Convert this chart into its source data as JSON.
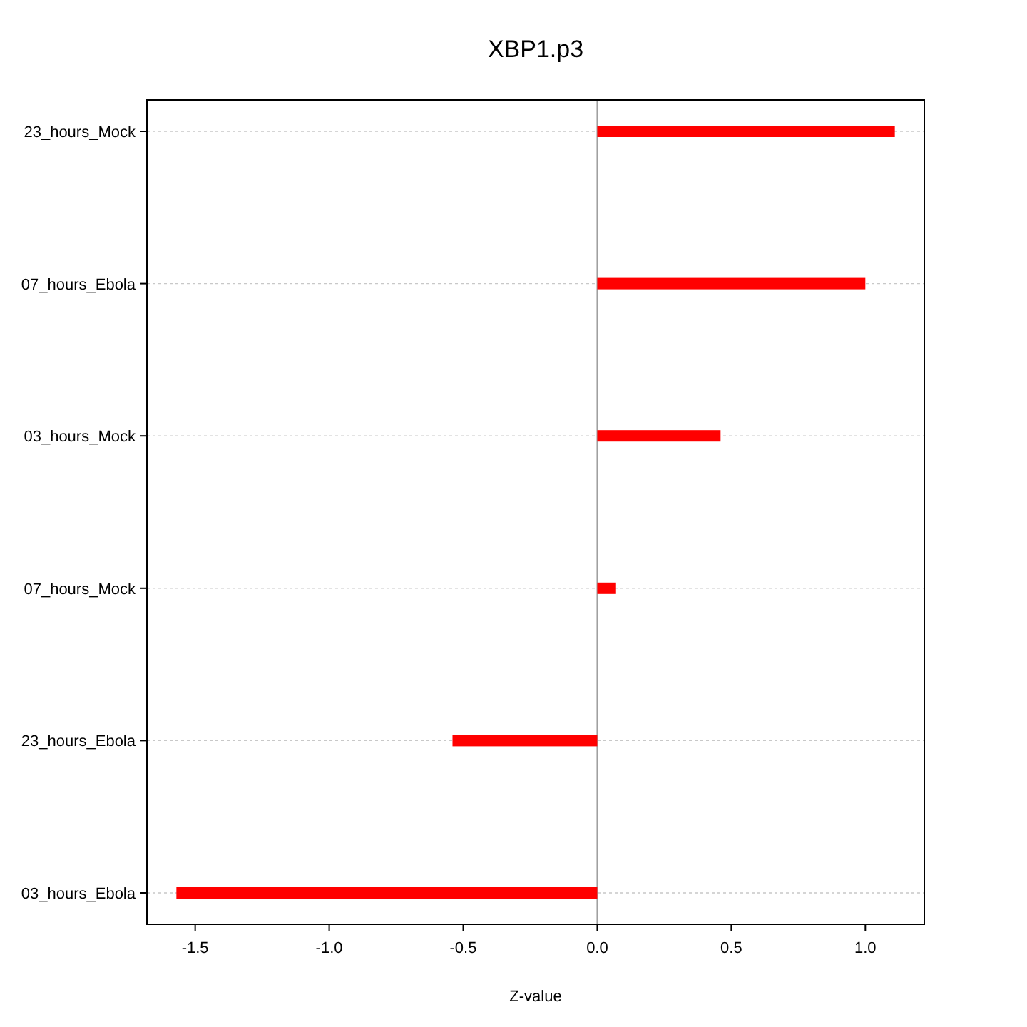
{
  "chart_data": {
    "type": "bar",
    "orientation": "horizontal",
    "title": "XBP1.p3",
    "xlabel": "Z-value",
    "categories": [
      "23_hours_Mock",
      "07_hours_Ebola",
      "03_hours_Mock",
      "07_hours_Mock",
      "23_hours_Ebola",
      "03_hours_Ebola"
    ],
    "values": [
      1.11,
      1.0,
      0.46,
      0.07,
      -0.54,
      -1.57
    ],
    "color": "#ff0000",
    "xlim": [
      -1.68,
      1.22
    ],
    "xticks": [
      -1.5,
      {
        "value": -1,
        "label": "-1.0"
      },
      -0.5,
      {
        "value": 0,
        "label": "0.0"
      },
      0.5,
      {
        "value": 1,
        "label": "1.0"
      }
    ],
    "grid": "y",
    "ref_lines": [
      {
        "axis": "x",
        "value": 0,
        "color": "#a0a0a0"
      }
    ]
  }
}
